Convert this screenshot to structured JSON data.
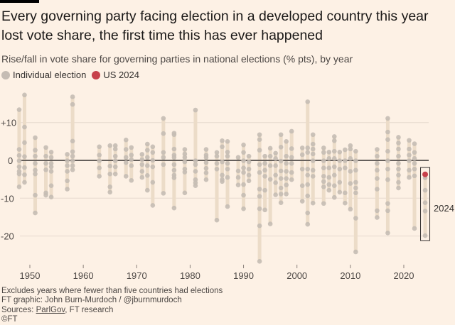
{
  "title": "Every governing party facing election in a developed country this year lost vote share, the first time this has ever happened",
  "subtitle": "Rise/fall in vote share for governing parties in national elections (% pts), by year",
  "legend": [
    {
      "label": "Individual election",
      "color": "#c5bcb4"
    },
    {
      "label": "US 2024",
      "color": "#c7414b"
    }
  ],
  "footer": {
    "note": "Excludes years where fewer than five countries had elections",
    "credit": "FT graphic: John Burn-Murdoch / @jburnmurdoch",
    "sources_prefix": "Sources: ",
    "sources_link": "ParlGov",
    "sources_suffix": ", FT research",
    "copyright": "©FT"
  },
  "chart_data": {
    "type": "scatter",
    "title": "Rise/fall in vote share for governing parties in national elections (% pts), by year",
    "xlabel": "",
    "ylabel": "% pts",
    "xlim": [
      1946.5,
      2025.5
    ],
    "ylim": [
      -27,
      19
    ],
    "x_ticks": [
      1950,
      1960,
      1970,
      1980,
      1990,
      2000,
      2010,
      2020
    ],
    "y_ticks": [
      {
        "value": 10,
        "label": "+10"
      },
      {
        "value": 0,
        "label": "0"
      },
      {
        "value": -10,
        "label": "-10"
      },
      {
        "value": -20,
        "label": "-20"
      }
    ],
    "grid": true,
    "highlight": {
      "year": 2024,
      "value": -3.7,
      "label": "US 2024",
      "box_label": "2024"
    },
    "series": [
      {
        "year": 1948,
        "values": [
          13.4,
          2.9,
          1.3,
          -0.1,
          -1.7,
          -2.9,
          -3.6,
          -7.0
        ]
      },
      {
        "year": 1949,
        "values": [
          17.3,
          8.8,
          4.7,
          1.0,
          -1.9,
          -3.8,
          -5.8
        ]
      },
      {
        "year": 1951,
        "values": [
          6.0,
          2.7,
          1.1,
          -0.8,
          -2.6,
          -3.6,
          -9.2,
          -13.9
        ]
      },
      {
        "year": 1953,
        "values": [
          3.4,
          1.1,
          -0.8,
          -2.5,
          -8.6,
          -9.2
        ]
      },
      {
        "year": 1954,
        "values": [
          2.2,
          0.8,
          -0.8,
          -1.7,
          -2.9,
          -6.7,
          -9.7
        ]
      },
      {
        "year": 1957,
        "values": [
          1.6,
          -0.1,
          -1.4,
          -2.9,
          -5.4,
          -7.6
        ]
      },
      {
        "year": 1958,
        "values": [
          16.8,
          14.8,
          5.1,
          2.3,
          1.1,
          -0.1,
          -1.4,
          -2.5
        ]
      },
      {
        "year": 1963,
        "values": [
          3.6,
          1.4,
          -0.1,
          -2.0,
          -4.2
        ]
      },
      {
        "year": 1965,
        "values": [
          3.9,
          -1.5,
          -3.6,
          -7.0,
          -8.4
        ]
      },
      {
        "year": 1966,
        "values": [
          3.9,
          3.0,
          1.1,
          -0.1,
          -1.7,
          -3.6
        ]
      },
      {
        "year": 1968,
        "values": [
          5.4,
          2.9,
          0.8,
          -0.6,
          -4.2
        ]
      },
      {
        "year": 1969,
        "values": [
          3.4,
          1.4,
          0.2,
          -1.4,
          -5.3
        ]
      },
      {
        "year": 1971,
        "values": [
          1.6,
          0.2,
          -1.1,
          -2.9,
          -4.5
        ]
      },
      {
        "year": 1972,
        "values": [
          4.3,
          2.7,
          0.8,
          -1.4,
          -4.0,
          -7.9
        ]
      },
      {
        "year": 1973,
        "values": [
          3.6,
          2.1,
          0.0,
          -1.7,
          -5.8,
          -11.9
        ]
      },
      {
        "year": 1975,
        "values": [
          11.1,
          7.1,
          2.1,
          0.8,
          -1.1,
          -8.7
        ]
      },
      {
        "year": 1977,
        "values": [
          7.2,
          6.8,
          3.0,
          1.4,
          0.8,
          -1.1,
          -2.6,
          -3.9,
          -4.6,
          -12.6
        ]
      },
      {
        "year": 1979,
        "values": [
          2.9,
          1.7,
          0.8,
          -0.4,
          -2.3,
          -3.1,
          -8.6
        ]
      },
      {
        "year": 1981,
        "values": [
          13.3,
          -0.1,
          -1.1,
          -2.9,
          -5.1,
          -5.9,
          -6.7
        ]
      },
      {
        "year": 1983,
        "values": [
          2.9,
          1.4,
          0.8,
          -0.6,
          -2.1,
          -3.3,
          -5.1
        ]
      },
      {
        "year": 1985,
        "values": [
          2.1,
          1.1,
          -0.8,
          -2.3,
          -15.8
        ]
      },
      {
        "year": 1986,
        "values": [
          5.2,
          3.6,
          -0.4,
          -3.9,
          -5.1,
          -5.6
        ]
      },
      {
        "year": 1987,
        "values": [
          5.0,
          2.2,
          1.1,
          -0.8,
          -2.3,
          -4.5,
          -12.2
        ]
      },
      {
        "year": 1989,
        "values": [
          0.8,
          -2.8,
          -4.5,
          -6.5
        ]
      },
      {
        "year": 1990,
        "values": [
          4.1,
          2.1,
          -0.1,
          -2.0,
          -3.2,
          -6.4,
          -9.2,
          -12.8
        ]
      },
      {
        "year": 1991,
        "values": [
          1.1,
          -0.4,
          -2.3,
          -3.9,
          -5.4
        ]
      },
      {
        "year": 1993,
        "values": [
          6.8,
          5.5,
          2.7,
          -1.1,
          -3.2,
          -7.6,
          -9.5,
          -12.8,
          -17.3,
          -26.7
        ]
      },
      {
        "year": 1994,
        "values": [
          1.1,
          -0.8,
          -2.6,
          -4.2,
          -7.9,
          -13.1
        ]
      },
      {
        "year": 1995,
        "values": [
          3.2,
          1.1,
          -1.4,
          -5.0,
          -16.8
        ]
      },
      {
        "year": 1996,
        "values": [
          1.9,
          0.5,
          -1.4,
          -3.9,
          -5.9,
          -9.1
        ]
      },
      {
        "year": 1997,
        "values": [
          6.8,
          3.5,
          -0.2,
          -2.8,
          -4.8,
          -7.3,
          -8.9,
          -11.2
        ]
      },
      {
        "year": 1998,
        "values": [
          5.0,
          1.1,
          -0.8,
          -2.9,
          -4.8,
          -6.5,
          -8.9
        ]
      },
      {
        "year": 1999,
        "values": [
          7.7,
          3.1,
          0.8,
          -0.8,
          -3.2,
          -5.1
        ]
      },
      {
        "year": 2001,
        "values": [
          3.3,
          1.5,
          -2.3,
          -6.7,
          -10.8
        ]
      },
      {
        "year": 2002,
        "values": [
          15.5,
          3.3,
          2.1,
          -2.3,
          -3.9,
          -6.4,
          -9.4,
          -13.9,
          -16.9
        ]
      },
      {
        "year": 2003,
        "values": [
          6.8,
          4.3,
          3.0,
          1.7,
          -0.1,
          -2.6,
          -4.2,
          -11.3
        ]
      },
      {
        "year": 2005,
        "values": [
          3.3,
          2.1,
          -0.1,
          -2.0,
          -4.2,
          -5.6,
          -7.0,
          -11.4
        ]
      },
      {
        "year": 2006,
        "values": [
          2.2,
          0.5,
          -2.0,
          -4.5,
          -6.4,
          -7.9
        ]
      },
      {
        "year": 2007,
        "values": [
          6.3,
          5.2,
          2.4,
          0.5,
          -1.7,
          -3.9,
          -6.7,
          -9.8
        ]
      },
      {
        "year": 2008,
        "values": [
          2.2,
          -0.1,
          -2.3,
          -5.8,
          -8.4
        ]
      },
      {
        "year": 2009,
        "values": [
          2.8,
          -0.1,
          -2.0,
          -8.6,
          -11.3
        ]
      },
      {
        "year": 2010,
        "values": [
          3.9,
          3.0,
          0.5,
          -2.9,
          -6.1,
          -12.9
        ]
      },
      {
        "year": 2011,
        "values": [
          2.4,
          -0.1,
          -2.6,
          -5.8,
          -7.3,
          -8.6,
          -15.3,
          -24.2
        ]
      },
      {
        "year": 2015,
        "values": [
          2.9,
          1.1,
          -0.8,
          -2.6,
          -4.8,
          -7.6,
          -13.3,
          -15.1
        ]
      },
      {
        "year": 2017,
        "values": [
          11.1,
          7.5,
          5.5,
          2.4,
          -0.1,
          -2.3,
          -5.1,
          -11.4,
          -13.3,
          -19.2
        ]
      },
      {
        "year": 2019,
        "values": [
          6.1,
          4.6,
          3.0,
          1.1,
          -0.8,
          -2.3,
          -3.9,
          -5.8,
          -7.3
        ]
      },
      {
        "year": 2021,
        "values": [
          5.3,
          3.0,
          1.4,
          -0.1,
          -2.6,
          -4.5
        ]
      },
      {
        "year": 2022,
        "values": [
          4.4,
          2.1,
          0.5,
          -0.8,
          -2.3,
          -4.1,
          -18.0
        ]
      },
      {
        "year": 2024,
        "values": [
          -3.7,
          -4.6,
          -7.9,
          -11.2,
          -13.4,
          -19.9
        ]
      }
    ],
    "colors": {
      "point": "#c5bcb4",
      "range": "#ecdcc8",
      "highlight": "#c7414b",
      "grid": "#e6d9ce",
      "zero": "#66605c"
    }
  }
}
